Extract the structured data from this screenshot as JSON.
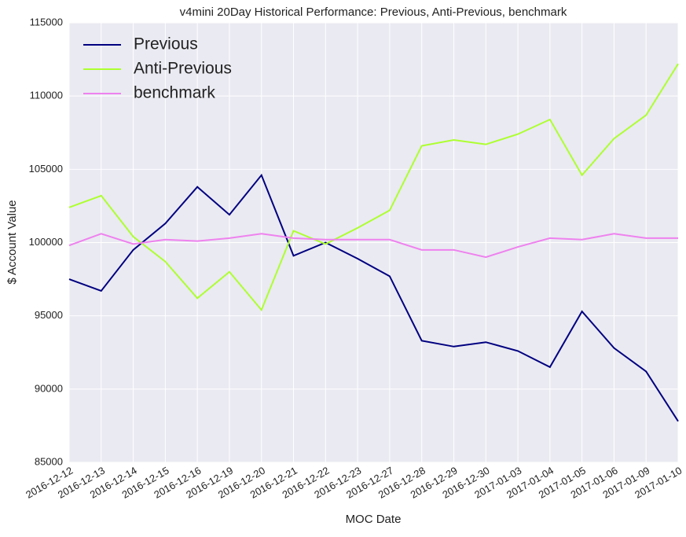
{
  "chart_data": {
    "type": "line",
    "title": "v4mini 20Day Historical Performance: Previous, Anti-Previous, benchmark",
    "x_label": "MOC Date",
    "y_label": "$ Account Value",
    "categories": [
      "2016-12-12",
      "2016-12-13",
      "2016-12-14",
      "2016-12-15",
      "2016-12-16",
      "2016-12-19",
      "2016-12-20",
      "2016-12-21",
      "2016-12-22",
      "2016-12-23",
      "2016-12-27",
      "2016-12-28",
      "2016-12-29",
      "2016-12-30",
      "2017-01-03",
      "2017-01-04",
      "2017-01-05",
      "2017-01-06",
      "2017-01-09",
      "2017-01-10"
    ],
    "series": [
      {
        "name": "Previous",
        "color": "#000080",
        "values": [
          97500,
          96700,
          99500,
          101300,
          103800,
          101900,
          104600,
          99100,
          100000,
          98900,
          97700,
          93300,
          92900,
          93200,
          92600,
          91500,
          95300,
          92800,
          91200,
          87800
        ]
      },
      {
        "name": "Anti-Previous",
        "color": "#adff2f",
        "values": [
          102400,
          103200,
          100400,
          98700,
          96200,
          98000,
          95400,
          100800,
          99900,
          101000,
          102200,
          106600,
          107000,
          106700,
          107400,
          108400,
          104600,
          107100,
          108700,
          112200
        ]
      },
      {
        "name": "benchmark",
        "color": "#ee82ee",
        "values": [
          99800,
          100600,
          99900,
          100200,
          100100,
          100300,
          100600,
          100300,
          100200,
          100200,
          100200,
          99500,
          99500,
          99000,
          99700,
          100300,
          100200,
          100600,
          100300,
          100300
        ]
      }
    ],
    "ylim": [
      85000,
      115000
    ],
    "yticks": [
      85000,
      90000,
      95000,
      100000,
      105000,
      110000,
      115000
    ],
    "grid": true,
    "legend": "upper left"
  }
}
